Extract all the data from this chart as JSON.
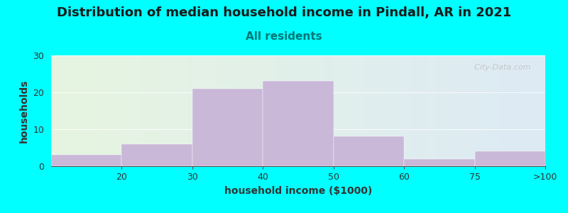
{
  "title": "Distribution of median household income in Pindall, AR in 2021",
  "subtitle": "All residents",
  "xlabel": "household income ($1000)",
  "ylabel": "households",
  "background_color": "#00FFFF",
  "plot_bg_color_left": "#e6f5e0",
  "plot_bg_color_right": "#ddeaf5",
  "bar_color": "#c9b8d8",
  "values": [
    3,
    6,
    21,
    23,
    8,
    2,
    4
  ],
  "bin_labels": [
    "20",
    "30",
    "40",
    "50",
    "60",
    "75",
    ">100"
  ],
  "ylim": [
    0,
    30
  ],
  "yticks": [
    0,
    10,
    20,
    30
  ],
  "title_fontsize": 13,
  "subtitle_fontsize": 11,
  "subtitle_color": "#007777",
  "axis_label_fontsize": 10,
  "tick_fontsize": 9,
  "watermark": "  City-Data.com"
}
